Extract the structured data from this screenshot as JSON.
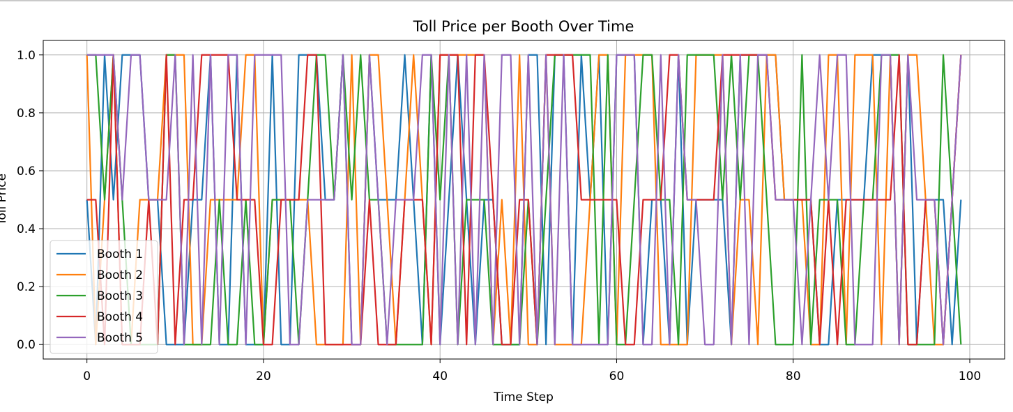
{
  "chart_data": {
    "type": "line",
    "title": "Toll Price per Booth Over Time",
    "xlabel": "Time Step",
    "ylabel": "Toll Price",
    "xlim": [
      -4.95,
      103.95
    ],
    "ylim": [
      -0.05,
      1.05
    ],
    "xticks": [
      0,
      20,
      40,
      60,
      80,
      100
    ],
    "yticks": [
      0.0,
      0.2,
      0.4,
      0.6,
      0.8,
      1.0
    ],
    "grid": true,
    "legend_position": "lower-left",
    "x": [
      0,
      1,
      2,
      3,
      4,
      5,
      6,
      7,
      8,
      9,
      10,
      11,
      12,
      13,
      14,
      15,
      16,
      17,
      18,
      19,
      20,
      21,
      22,
      23,
      24,
      25,
      26,
      27,
      28,
      29,
      30,
      31,
      32,
      33,
      34,
      35,
      36,
      37,
      38,
      39,
      40,
      41,
      42,
      43,
      44,
      45,
      46,
      47,
      48,
      49,
      50,
      51,
      52,
      53,
      54,
      55,
      56,
      57,
      58,
      59,
      60,
      61,
      62,
      63,
      64,
      65,
      66,
      67,
      68,
      69,
      70,
      71,
      72,
      73,
      74,
      75,
      76,
      77,
      78,
      79,
      80,
      81,
      82,
      83,
      84,
      85,
      86,
      87,
      88,
      89,
      90,
      91,
      92,
      93,
      94,
      95,
      96,
      97,
      98,
      99
    ],
    "series": [
      {
        "name": "Booth 1",
        "color": "#1f77b4",
        "values": [
          0.5,
          0,
          1,
          0.5,
          1,
          1,
          1,
          0.5,
          0.5,
          0,
          0,
          0,
          0.5,
          0.5,
          1,
          0,
          0,
          1,
          0,
          0,
          0,
          1,
          0,
          0,
          1,
          1,
          1,
          0.5,
          0.5,
          1,
          0,
          0,
          1,
          0.5,
          0.5,
          0.5,
          1,
          0.5,
          0,
          1,
          0,
          0.5,
          1,
          0.5,
          0,
          0.5,
          0.5,
          0,
          0,
          0,
          1,
          1,
          0,
          1,
          1,
          0,
          1,
          0.5,
          1,
          0,
          1,
          1,
          1,
          0,
          0.5,
          0.5,
          0,
          1,
          0,
          0.5,
          0.5,
          0.5,
          0.5,
          0,
          1,
          1,
          1,
          1,
          1,
          0.5,
          0.5,
          0.5,
          0.5,
          0,
          0,
          0.5,
          0.5,
          0.5,
          0.5,
          1,
          1,
          1,
          0,
          1,
          0,
          0.5,
          0.5,
          0.5,
          0,
          0.5
        ]
      },
      {
        "name": "Booth 2",
        "color": "#ff7f0e",
        "values": [
          1,
          0,
          0.5,
          1,
          0,
          0,
          0.5,
          0.5,
          0.5,
          1,
          1,
          1,
          0,
          0,
          0.5,
          0.5,
          0.5,
          0.5,
          1,
          1,
          0,
          0.5,
          0.5,
          0.5,
          0.5,
          0.5,
          0,
          0,
          0,
          0,
          1,
          0,
          1,
          1,
          0.5,
          0,
          0.5,
          1,
          0.5,
          0,
          1,
          1,
          1,
          1,
          1,
          1,
          0,
          0.5,
          0,
          1,
          0,
          0,
          1,
          0,
          0,
          0,
          0,
          0.5,
          1,
          1,
          0,
          1,
          1,
          1,
          1,
          0,
          0,
          0,
          0,
          1,
          1,
          1,
          1,
          0,
          0.5,
          0.5,
          0,
          1,
          1,
          0.5,
          0.5,
          0.5,
          0,
          0,
          1,
          1,
          0,
          1,
          1,
          1,
          0,
          1,
          0,
          1,
          1,
          0.5,
          0,
          0,
          0.5,
          1
        ]
      },
      {
        "name": "Booth 3",
        "color": "#2ca02c",
        "values": [
          1,
          1,
          0.5,
          1,
          0.5,
          0,
          0,
          0,
          0,
          1,
          1,
          0,
          0,
          0,
          0,
          0.5,
          0,
          0,
          0.5,
          0,
          0,
          0.5,
          0.5,
          0.5,
          0,
          0.5,
          1,
          1,
          0.5,
          1,
          0.5,
          1,
          0.5,
          0.5,
          0,
          0,
          0,
          0,
          0,
          1,
          0.5,
          1,
          0,
          0.5,
          0.5,
          0.5,
          0,
          0,
          0,
          0,
          0.5,
          0,
          0.5,
          1,
          1,
          1,
          1,
          1,
          0,
          1,
          0,
          0,
          0.5,
          1,
          1,
          0.5,
          0.5,
          0,
          1,
          1,
          1,
          1,
          0.5,
          1,
          0.5,
          1,
          1,
          0.5,
          0,
          0,
          0,
          1,
          0,
          0.5,
          0.5,
          0.5,
          0,
          0,
          0.5,
          0.5,
          1,
          1,
          1,
          0,
          0,
          0,
          0,
          1,
          0.5,
          0
        ]
      },
      {
        "name": "Booth 4",
        "color": "#d62728",
        "values": [
          0.5,
          0.5,
          0,
          1,
          0,
          0,
          0,
          0.5,
          0,
          1,
          0,
          0.5,
          0.5,
          1,
          1,
          1,
          1,
          0.5,
          0.5,
          0.5,
          0,
          0,
          0.5,
          0.5,
          0.5,
          1,
          1,
          0,
          0,
          0,
          0,
          0,
          0.5,
          0,
          0,
          0,
          0.5,
          0.5,
          0.5,
          0,
          1,
          1,
          1,
          0,
          1,
          1,
          0.5,
          0,
          0,
          0.5,
          0.5,
          0,
          1,
          1,
          1,
          1,
          0.5,
          0.5,
          0.5,
          0.5,
          0.5,
          0,
          0,
          0.5,
          0.5,
          0.5,
          1,
          1,
          0.5,
          0.5,
          0.5,
          0.5,
          1,
          1,
          1,
          1,
          1,
          1,
          0.5,
          0.5,
          0.5,
          0.5,
          0.5,
          0,
          0.5,
          0,
          0.5,
          0.5,
          0.5,
          0.5,
          0.5,
          0.5,
          1,
          0,
          0,
          0.5,
          0.5,
          0,
          0.5,
          1
        ]
      },
      {
        "name": "Booth 5",
        "color": "#9467bd",
        "values": [
          1,
          1,
          1,
          1,
          0.5,
          1,
          1,
          0.5,
          0.5,
          0.5,
          1,
          0,
          1,
          0,
          1,
          0,
          1,
          1,
          0,
          1,
          1,
          1,
          1,
          0,
          0,
          0.5,
          0.5,
          0.5,
          0.5,
          1,
          0,
          0,
          1,
          0.5,
          0,
          0.5,
          0.5,
          0.5,
          1,
          1,
          0,
          1,
          0,
          1,
          0,
          1,
          0,
          1,
          1,
          0,
          1,
          0,
          1,
          0,
          1,
          0,
          0,
          0,
          0,
          0,
          1,
          1,
          1,
          0,
          0,
          1,
          0,
          1,
          0.5,
          0.5,
          0,
          0,
          1,
          0,
          1,
          0,
          1,
          1,
          0.5,
          0.5,
          0.5,
          0,
          0.5,
          1,
          0.5,
          1,
          1,
          0,
          0,
          0,
          1,
          1,
          0,
          1,
          0.5,
          0.5,
          0.5,
          0,
          0.5,
          1
        ]
      }
    ]
  }
}
